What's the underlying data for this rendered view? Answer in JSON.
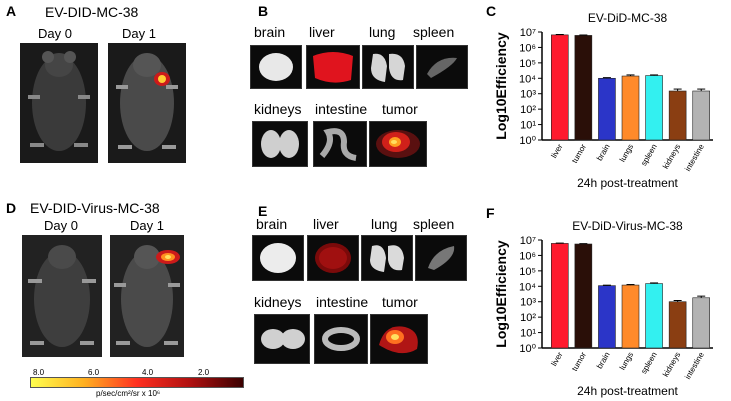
{
  "panels": {
    "A": {
      "letter": "A",
      "title": "EV-DID-MC-38",
      "day0": "Day 0",
      "day1": "Day 1"
    },
    "B": {
      "letter": "B",
      "organs": [
        "brain",
        "liver",
        "lung",
        "spleen",
        "kidneys",
        "intestine",
        "tumor"
      ]
    },
    "C": {
      "letter": "C"
    },
    "D": {
      "letter": "D",
      "title": "EV-DID-Virus-MC-38",
      "day0": "Day 0",
      "day1": "Day 1"
    },
    "E": {
      "letter": "E",
      "organs": [
        "brain",
        "liver",
        "lung",
        "spleen",
        "kidneys",
        "intestine",
        "tumor"
      ]
    },
    "F": {
      "letter": "F"
    }
  },
  "colorbar": {
    "ticks": [
      "8.0",
      "6.0",
      "4.0",
      "2.0"
    ],
    "unit_label": "p/sec/cm²/sr x 10⁶"
  },
  "chart_data": [
    {
      "type": "bar",
      "title": "EV-DiD-MC-38",
      "xlabel": "24h post-treatment",
      "ylabel": "Log10Efficiency",
      "yscale": "log",
      "ylim": [
        1,
        10000000
      ],
      "yticks": [
        "10⁰",
        "10¹",
        "10²",
        "10³",
        "10⁴",
        "10⁵",
        "10⁶",
        "10⁷"
      ],
      "categories": [
        "liver",
        "tumor",
        "brain",
        "lungs",
        "spleen",
        "kidneys",
        "intestine"
      ],
      "values": [
        6500000,
        6000000,
        10000,
        14000,
        15000,
        1500,
        1500
      ],
      "errors": [
        400000,
        400000,
        1000,
        2500,
        1500,
        500,
        500
      ],
      "colors": [
        "#ff1a2e",
        "#2a0f08",
        "#2b35c8",
        "#ff8a2a",
        "#33f0f0",
        "#8a3e12",
        "#b3b3b3"
      ]
    },
    {
      "type": "bar",
      "title": "EV-DiD-Virus-MC-38",
      "xlabel": "24h post-treatment",
      "ylabel": "Log10Efficiency",
      "yscale": "log",
      "ylim": [
        1,
        10000000
      ],
      "yticks": [
        "10⁰",
        "10¹",
        "10²",
        "10³",
        "10⁴",
        "10⁵",
        "10⁶",
        "10⁷"
      ],
      "categories": [
        "liver",
        "tumor",
        "brain",
        "lungs",
        "spleen",
        "kidneys",
        "intestine"
      ],
      "values": [
        6000000,
        5500000,
        11000,
        12000,
        15000,
        1000,
        1800
      ],
      "errors": [
        300000,
        300000,
        800,
        1000,
        1500,
        200,
        500
      ],
      "colors": [
        "#ff1a2e",
        "#2a0f08",
        "#2b35c8",
        "#ff8a2a",
        "#33f0f0",
        "#8a3e12",
        "#b3b3b3"
      ]
    }
  ]
}
